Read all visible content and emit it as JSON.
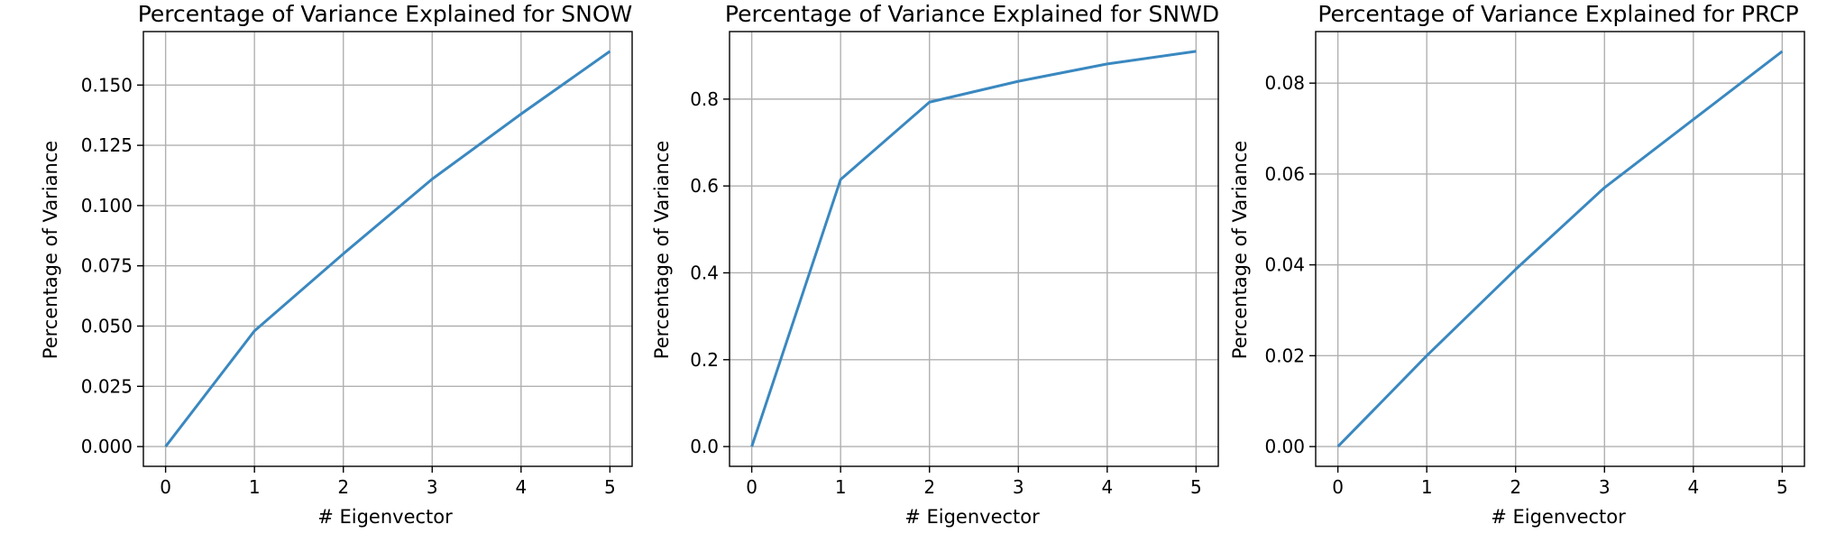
{
  "chart_data": [
    {
      "type": "line",
      "title": "Percentage of Variance Explained for SNOW",
      "xlabel": "# Eigenvector",
      "ylabel": "Percentage of Variance",
      "x": [
        0,
        1,
        2,
        3,
        4,
        5
      ],
      "values": [
        0.0,
        0.048,
        0.08,
        0.111,
        0.138,
        0.164
      ],
      "xlim": [
        -0.25,
        5.25
      ],
      "ylim": [
        -0.0082,
        0.1722
      ],
      "xticks": [
        0,
        1,
        2,
        3,
        4,
        5
      ],
      "yticks": [
        0.0,
        0.025,
        0.05,
        0.075,
        0.1,
        0.125,
        0.15
      ],
      "ytick_labels": [
        "0.000",
        "0.025",
        "0.050",
        "0.075",
        "0.100",
        "0.125",
        "0.150"
      ],
      "grid": true,
      "color": "#3a88c0"
    },
    {
      "type": "line",
      "title": "Percentage of Variance Explained for SNWD",
      "xlabel": "# Eigenvector",
      "ylabel": "Percentage of Variance",
      "x": [
        0,
        1,
        2,
        3,
        4,
        5
      ],
      "values": [
        0.0,
        0.615,
        0.793,
        0.841,
        0.881,
        0.91
      ],
      "xlim": [
        -0.25,
        5.25
      ],
      "ylim": [
        -0.0455,
        0.9555
      ],
      "xticks": [
        0,
        1,
        2,
        3,
        4,
        5
      ],
      "yticks": [
        0.0,
        0.2,
        0.4,
        0.6,
        0.8
      ],
      "ytick_labels": [
        "0.0",
        "0.2",
        "0.4",
        "0.6",
        "0.8"
      ],
      "grid": true,
      "color": "#3a88c0"
    },
    {
      "type": "line",
      "title": "Percentage of Variance Explained for PRCP",
      "xlabel": "# Eigenvector",
      "ylabel": "Percentage of Variance",
      "x": [
        0,
        1,
        2,
        3,
        4,
        5
      ],
      "values": [
        0.0,
        0.02,
        0.039,
        0.057,
        0.072,
        0.087
      ],
      "xlim": [
        -0.25,
        5.25
      ],
      "ylim": [
        -0.00435,
        0.09135
      ],
      "xticks": [
        0,
        1,
        2,
        3,
        4,
        5
      ],
      "yticks": [
        0.0,
        0.02,
        0.04,
        0.06,
        0.08
      ],
      "ytick_labels": [
        "0.00",
        "0.02",
        "0.04",
        "0.06",
        "0.08"
      ],
      "grid": true,
      "color": "#3a88c0"
    }
  ]
}
